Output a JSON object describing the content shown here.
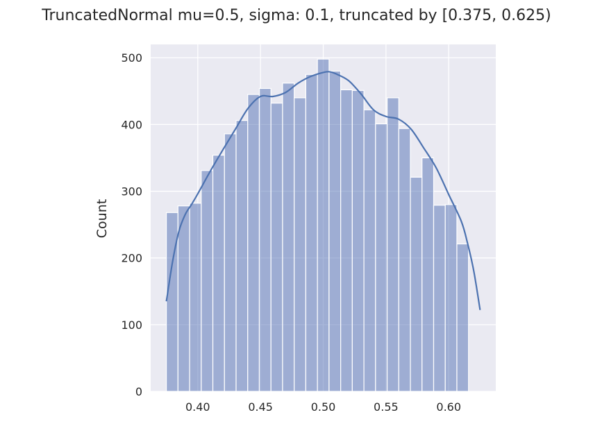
{
  "chart_data": {
    "type": "bar",
    "title": "TruncatedNormal mu=0.5, sigma: 0.1, truncated by [0.375, 0.625)",
    "xlabel": "",
    "ylabel": "Count",
    "xlim": [
      0.3625,
      0.6375
    ],
    "ylim": [
      0,
      520
    ],
    "xticks": [
      0.4,
      0.45,
      0.5,
      0.55,
      0.6
    ],
    "xtick_labels": [
      "0.40",
      "0.45",
      "0.50",
      "0.55",
      "0.60"
    ],
    "yticks": [
      0,
      100,
      200,
      300,
      400,
      500
    ],
    "ytick_labels": [
      "0",
      "100",
      "200",
      "300",
      "400",
      "500"
    ],
    "grid": true,
    "legend": "none",
    "colors": {
      "bar": "#5874b6",
      "kde": "#4c72b0",
      "plot_bg": "#eaeaf2",
      "grid": "#ffffff"
    },
    "bins": {
      "start": 0.375,
      "width": 0.00926,
      "counts": [
        268,
        278,
        282,
        331,
        354,
        386,
        406,
        445,
        454,
        432,
        462,
        440,
        475,
        498,
        480,
        452,
        451,
        422,
        401,
        440,
        394,
        321,
        350,
        279,
        280,
        221
      ]
    },
    "kde": {
      "x": [
        0.375,
        0.38,
        0.385,
        0.39,
        0.395,
        0.4,
        0.41,
        0.42,
        0.43,
        0.44,
        0.45,
        0.46,
        0.47,
        0.48,
        0.49,
        0.5,
        0.505,
        0.51,
        0.52,
        0.53,
        0.54,
        0.55,
        0.56,
        0.57,
        0.58,
        0.59,
        0.6,
        0.61,
        0.615,
        0.62,
        0.625
      ],
      "y": [
        135,
        195,
        240,
        265,
        280,
        296,
        330,
        362,
        393,
        424,
        442,
        442,
        448,
        462,
        472,
        478,
        479,
        476,
        466,
        446,
        422,
        412,
        408,
        393,
        365,
        335,
        295,
        255,
        222,
        180,
        122
      ]
    }
  }
}
